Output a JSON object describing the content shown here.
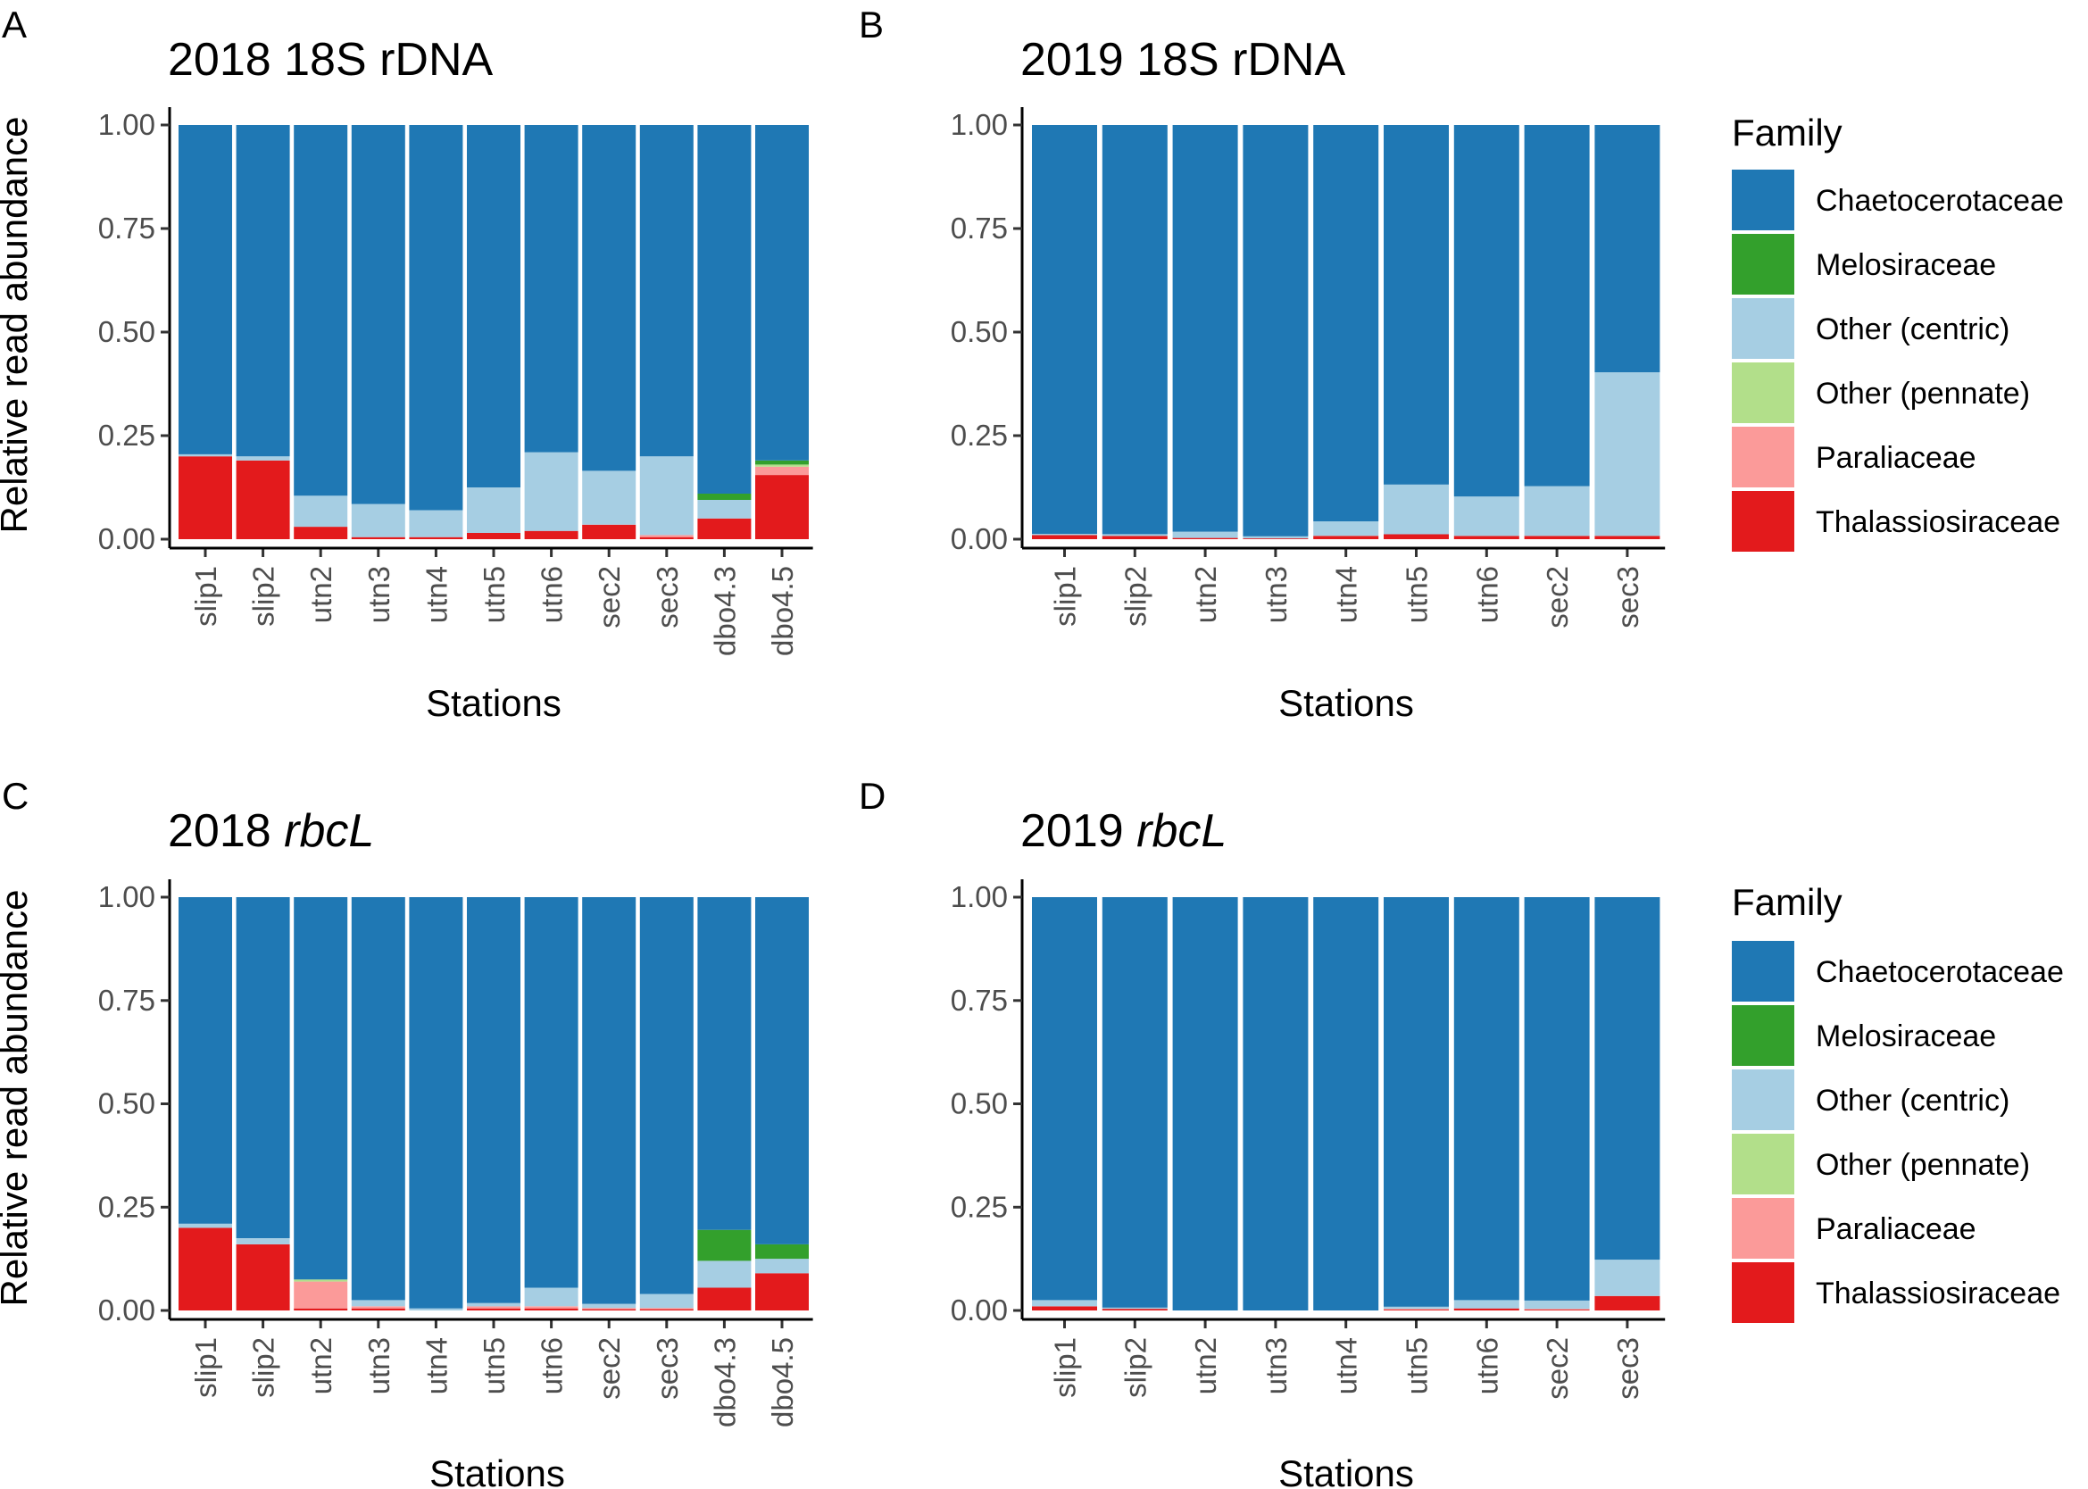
{
  "legend": {
    "title": "Family",
    "families": [
      {
        "name": "Chaetocerotaceae",
        "color": "#1f78b4"
      },
      {
        "name": "Melosiraceae",
        "color": "#33a02c"
      },
      {
        "name": "Other (centric)",
        "color": "#a6cee3"
      },
      {
        "name": "Other (pennate)",
        "color": "#b2df8a"
      },
      {
        "name": "Paraliaceae",
        "color": "#fb9a99"
      },
      {
        "name": "Thalassiosiraceae",
        "color": "#e31a1c"
      }
    ]
  },
  "chart_data": [
    {
      "type": "bar",
      "stacked": true,
      "panel_label": "A",
      "title_prefix": "2018",
      "title_suffix": "18S rDNA",
      "title_italic": false,
      "xlabel": "Stations",
      "ylabel": "Relative read abundance",
      "ylim": [
        0,
        1
      ],
      "yticks": [
        "0.00",
        "0.25",
        "0.50",
        "0.75",
        "1.00"
      ],
      "categories": [
        "slip1",
        "slip2",
        "utn2",
        "utn3",
        "utn4",
        "utn5",
        "utn6",
        "sec2",
        "sec3",
        "dbo4.3",
        "dbo4.5"
      ],
      "series": [
        {
          "name": "Thalassiosiraceae",
          "values": [
            0.2,
            0.19,
            0.03,
            0.005,
            0.005,
            0.015,
            0.02,
            0.035,
            0.005,
            0.05,
            0.155
          ]
        },
        {
          "name": "Paraliaceae",
          "values": [
            0,
            0,
            0,
            0,
            0,
            0,
            0,
            0,
            0.005,
            0,
            0.02
          ]
        },
        {
          "name": "Other (pennate)",
          "values": [
            0,
            0,
            0,
            0,
            0,
            0,
            0,
            0,
            0,
            0,
            0.005
          ]
        },
        {
          "name": "Other (centric)",
          "values": [
            0.005,
            0.01,
            0.075,
            0.08,
            0.065,
            0.11,
            0.19,
            0.13,
            0.19,
            0.045,
            0
          ]
        },
        {
          "name": "Melosiraceae",
          "values": [
            0,
            0,
            0,
            0,
            0,
            0,
            0,
            0,
            0,
            0.015,
            0.01
          ]
        },
        {
          "name": "Chaetocerotaceae",
          "values": [
            0.795,
            0.8,
            0.895,
            0.915,
            0.93,
            0.875,
            0.79,
            0.835,
            0.8,
            0.89,
            0.81
          ]
        }
      ]
    },
    {
      "type": "bar",
      "stacked": true,
      "panel_label": "B",
      "title_prefix": "2019",
      "title_suffix": "18S rDNA",
      "title_italic": false,
      "xlabel": "Stations",
      "ylabel": "",
      "ylim": [
        0,
        1
      ],
      "yticks": [
        "0.00",
        "0.25",
        "0.50",
        "0.75",
        "1.00"
      ],
      "categories": [
        "slip1",
        "slip2",
        "utn2",
        "utn3",
        "utn4",
        "utn5",
        "utn6",
        "sec2",
        "sec3"
      ],
      "series": [
        {
          "name": "Thalassiosiraceae",
          "values": [
            0.01,
            0.008,
            0.003,
            0.002,
            0.008,
            0.012,
            0.008,
            0.008,
            0.008
          ]
        },
        {
          "name": "Paraliaceae",
          "values": [
            0,
            0,
            0,
            0,
            0,
            0,
            0,
            0,
            0
          ]
        },
        {
          "name": "Other (pennate)",
          "values": [
            0,
            0,
            0,
            0,
            0,
            0,
            0,
            0,
            0
          ]
        },
        {
          "name": "Other (centric)",
          "values": [
            0.003,
            0.004,
            0.015,
            0.005,
            0.035,
            0.12,
            0.095,
            0.12,
            0.395
          ]
        },
        {
          "name": "Melosiraceae",
          "values": [
            0,
            0,
            0,
            0,
            0,
            0,
            0,
            0,
            0
          ]
        },
        {
          "name": "Chaetocerotaceae",
          "values": [
            0.987,
            0.988,
            0.982,
            0.993,
            0.957,
            0.868,
            0.897,
            0.872,
            0.597
          ]
        }
      ]
    },
    {
      "type": "bar",
      "stacked": true,
      "panel_label": "C",
      "title_prefix": "2018",
      "title_suffix": "rbcL",
      "title_italic": true,
      "xlabel": "Stations",
      "ylabel": "Relative read abundance",
      "ylim": [
        0,
        1
      ],
      "yticks": [
        "0.00",
        "0.25",
        "0.50",
        "0.75",
        "1.00"
      ],
      "categories": [
        "slip1",
        "slip2",
        "utn2",
        "utn3",
        "utn4",
        "utn5",
        "utn6",
        "sec2",
        "sec3",
        "dbo4.3",
        "dbo4.5"
      ],
      "series": [
        {
          "name": "Thalassiosiraceae",
          "values": [
            0.2,
            0.16,
            0.005,
            0.005,
            0,
            0.005,
            0.005,
            0.003,
            0.003,
            0.055,
            0.09
          ]
        },
        {
          "name": "Paraliaceae",
          "values": [
            0,
            0,
            0.065,
            0.005,
            0,
            0.005,
            0.005,
            0.003,
            0.003,
            0,
            0
          ]
        },
        {
          "name": "Other (pennate)",
          "values": [
            0,
            0,
            0.005,
            0,
            0,
            0,
            0,
            0,
            0,
            0,
            0
          ]
        },
        {
          "name": "Other (centric)",
          "values": [
            0.01,
            0.015,
            0,
            0.015,
            0.005,
            0.008,
            0.045,
            0.01,
            0.034,
            0.065,
            0.035
          ]
        },
        {
          "name": "Melosiraceae",
          "values": [
            0,
            0,
            0,
            0,
            0,
            0,
            0,
            0,
            0,
            0.075,
            0.035
          ]
        },
        {
          "name": "Chaetocerotaceae",
          "values": [
            0.79,
            0.825,
            0.925,
            0.975,
            0.995,
            0.982,
            0.945,
            0.984,
            0.96,
            0.805,
            0.84
          ]
        }
      ]
    },
    {
      "type": "bar",
      "stacked": true,
      "panel_label": "D",
      "title_prefix": "2019",
      "title_suffix": "rbcL",
      "title_italic": true,
      "xlabel": "Stations",
      "ylabel": "",
      "ylim": [
        0,
        1
      ],
      "yticks": [
        "0.00",
        "0.25",
        "0.50",
        "0.75",
        "1.00"
      ],
      "categories": [
        "slip1",
        "slip2",
        "utn2",
        "utn3",
        "utn4",
        "utn5",
        "utn6",
        "sec2",
        "sec3"
      ],
      "series": [
        {
          "name": "Thalassiosiraceae",
          "values": [
            0.01,
            0.004,
            0,
            0,
            0,
            0.002,
            0.005,
            0.002,
            0.035
          ]
        },
        {
          "name": "Paraliaceae",
          "values": [
            0,
            0,
            0,
            0,
            0,
            0.002,
            0,
            0.002,
            0
          ]
        },
        {
          "name": "Other (pennate)",
          "values": [
            0,
            0,
            0,
            0,
            0,
            0,
            0,
            0,
            0
          ]
        },
        {
          "name": "Other (centric)",
          "values": [
            0.015,
            0.003,
            0,
            0,
            0,
            0.005,
            0.02,
            0.02,
            0.088
          ]
        },
        {
          "name": "Melosiraceae",
          "values": [
            0,
            0,
            0,
            0,
            0,
            0,
            0,
            0,
            0
          ]
        },
        {
          "name": "Chaetocerotaceae",
          "values": [
            0.975,
            0.993,
            1.0,
            1.0,
            1.0,
            0.991,
            0.975,
            0.976,
            0.877
          ]
        }
      ]
    }
  ]
}
